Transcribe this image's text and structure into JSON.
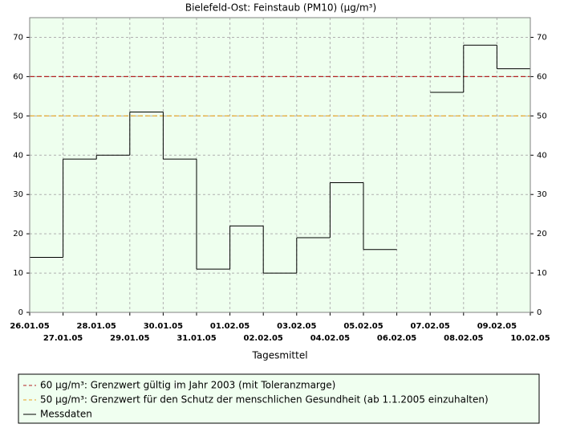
{
  "chart_data": {
    "type": "step",
    "title": "Bielefeld-Ost: Feinstaub (PM10) (µg/m³)",
    "x_label": "Tagesmittel",
    "x": [
      "26.01.05",
      "27.01.05",
      "28.01.05",
      "29.01.05",
      "30.01.05",
      "31.01.05",
      "01.02.05",
      "02.02.05",
      "03.02.05",
      "04.02.05",
      "05.02.05",
      "06.02.05",
      "07.02.05",
      "08.02.05",
      "09.02.05"
    ],
    "xticks": [
      "26.01.05",
      "27.01.05",
      "28.01.05",
      "29.01.05",
      "30.01.05",
      "31.01.05",
      "01.02.05",
      "02.02.05",
      "03.02.05",
      "04.02.05",
      "05.02.05",
      "06.02.05",
      "07.02.05",
      "08.02.05",
      "09.02.05",
      "10.02.05"
    ],
    "series": [
      {
        "name": "Messdaten",
        "color": "#000000",
        "values": [
          14,
          39,
          40,
          51,
          39,
          11,
          22,
          10,
          19,
          33,
          16,
          null,
          56,
          68,
          62
        ]
      }
    ],
    "reference_lines": [
      {
        "value": 60,
        "name": "60 µg/m³: Grenzwert gültig im Jahr 2003 (mit Toleranzmarge)",
        "color": "#b22222"
      },
      {
        "value": 50,
        "name": "50 µg/m³: Grenzwert für den Schutz der menschlichen Gesundheit (ab 1.1.2005 einzuhalten)",
        "color": "#e8a020"
      }
    ],
    "ylim": [
      0,
      75
    ],
    "yticks": [
      0,
      10,
      20,
      30,
      40,
      50,
      60,
      70
    ],
    "y2lim": [
      0,
      75
    ],
    "y2ticks": [
      0,
      10,
      20,
      30,
      40,
      50,
      60,
      70
    ],
    "grid": true
  }
}
